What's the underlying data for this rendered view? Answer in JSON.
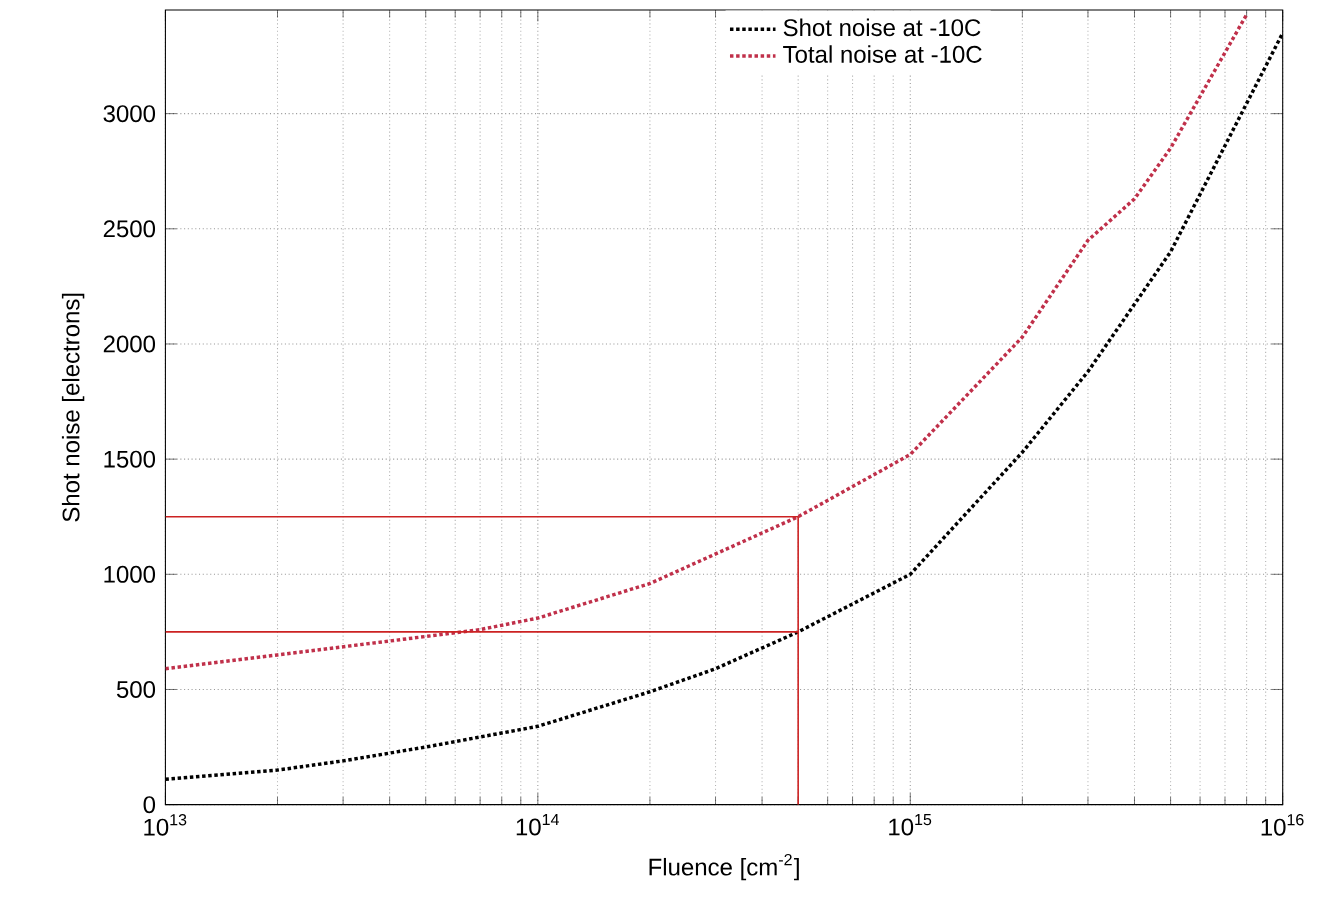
{
  "chart_data": {
    "type": "line",
    "xlabel": "Fluence [cm$^{-2}$]",
    "ylabel": "Shot noise [electrons]",
    "log": "x",
    "grid": true,
    "legend": "top",
    "marker": "none",
    "xlim": [
      10000000000000.0,
      1e+16
    ],
    "ylim": [
      0,
      3450
    ],
    "xticks": [
      {
        "value": 10000000000000.0,
        "label": "10$^{13}$"
      },
      {
        "value": 100000000000000.0,
        "label": "10$^{14}$"
      },
      {
        "value": 1000000000000000.0,
        "label": "10$^{15}$"
      },
      {
        "value": 1e+16,
        "label": "10$^{16}$"
      }
    ],
    "yticks": [
      0,
      500,
      1000,
      1500,
      2000,
      2500,
      3000
    ],
    "series": [
      {
        "name": "Shot noise at -10C",
        "color": "#000000",
        "line_style": "dotted",
        "x": [
          10000000000000.0,
          20000000000000.0,
          30000000000000.0,
          50000000000000.0,
          100000000000000.0,
          200000000000000.0,
          300000000000000.0,
          500000000000000.0,
          1000000000000000.0,
          2000000000000000.0,
          3000000000000000.0,
          5000000000000000.0,
          1e+16
        ],
        "values": [
          110,
          150,
          190,
          250,
          340,
          490,
          590,
          750,
          1000,
          1530,
          1880,
          2400,
          3350
        ]
      },
      {
        "name": "Total noise at -10C",
        "color": "#c0304a",
        "line_style": "dotted",
        "x": [
          10000000000000.0,
          20000000000000.0,
          50000000000000.0,
          70000000000000.0,
          100000000000000.0,
          200000000000000.0,
          500000000000000.0,
          1000000000000000.0,
          2000000000000000.0,
          3000000000000000.0,
          4000000000000000.0,
          5000000000000000.0,
          8000000000000000.0
        ],
        "values": [
          590,
          650,
          730,
          760,
          810,
          960,
          1250,
          1520,
          2030,
          2450,
          2630,
          2850,
          3430
        ]
      },
      {
        "color": "#cc2222",
        "line_style": "solid",
        "x": [
          10000000000000.0,
          500000000000000.0,
          500000000000000.0
        ],
        "values": [
          1250,
          1250,
          0
        ]
      },
      {
        "color": "#cc2222",
        "line_style": "solid",
        "x": [
          10000000000000.0,
          500000000000000.0
        ],
        "values": [
          750,
          750
        ]
      }
    ]
  }
}
